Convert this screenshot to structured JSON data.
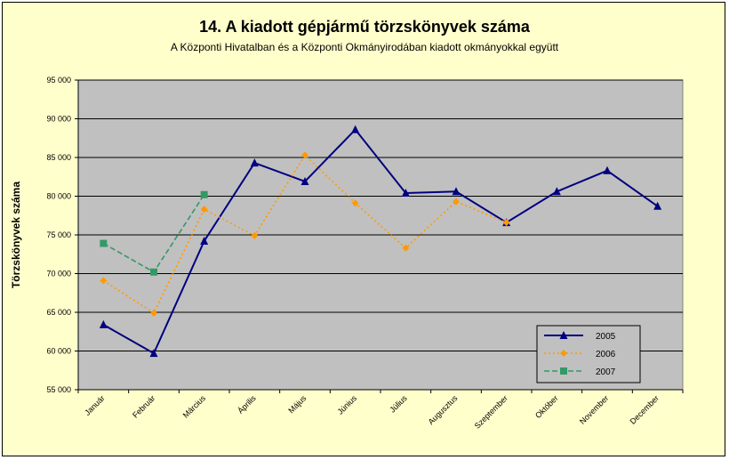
{
  "chart_data": {
    "type": "line",
    "title": "14. A  kiadott gépjármű  törzskönyvek száma",
    "subtitle": "A Központi Hivatalban és a Központi Okmányirodában kiadott okmányokkal együtt",
    "ylabel": "Törzskönyvek száma",
    "xlabel": "",
    "ylim": [
      55000,
      95000
    ],
    "ystep": 5000,
    "grid": true,
    "legend_position": "bottom-right",
    "categories": [
      "Január",
      "Február",
      "Március",
      "Április",
      "Május",
      "Június",
      "Július",
      "Augusztus",
      "Szeptember",
      "Október",
      "November",
      "December"
    ],
    "series": [
      {
        "name": "2005",
        "color": "#000080",
        "style": "solid",
        "marker": "triangle",
        "values": [
          63400,
          59700,
          74200,
          84300,
          81900,
          88600,
          80400,
          80600,
          76600,
          80600,
          83300,
          78700
        ]
      },
      {
        "name": "2006",
        "color": "#ff9900",
        "style": "dotted",
        "marker": "diamond",
        "values": [
          69100,
          64900,
          78300,
          74900,
          85300,
          79100,
          73300,
          79300,
          76600,
          null,
          null,
          null
        ]
      },
      {
        "name": "2007",
        "color": "#339966",
        "style": "dashed",
        "marker": "square",
        "values": [
          73900,
          70200,
          80200,
          null,
          null,
          null,
          null,
          null,
          null,
          null,
          null,
          null
        ]
      }
    ]
  },
  "colors": {
    "background": "#ffffcc",
    "plot_area": "#c0c0c0"
  }
}
